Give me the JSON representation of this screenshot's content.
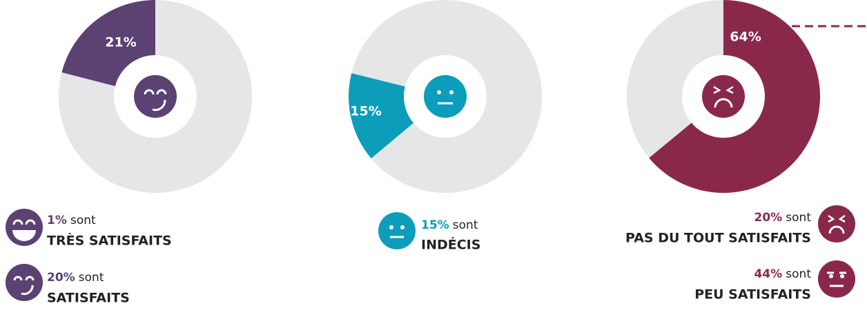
{
  "chart_data": [
    {
      "type": "pie",
      "values": [
        21,
        79
      ],
      "value_labels": [
        "21%",
        null
      ],
      "colors": [
        "#5b4272",
        "#e6e6e8"
      ]
    },
    {
      "type": "pie",
      "values": [
        15,
        85
      ],
      "value_labels": [
        "15%",
        null
      ],
      "colors": [
        "#0c9dba",
        "#e6e6e8"
      ]
    },
    {
      "type": "pie",
      "values": [
        64,
        36
      ],
      "value_labels": [
        "64%",
        null
      ],
      "colors": [
        "#8a284b",
        "#e6e6e8"
      ]
    }
  ],
  "legend": [
    {
      "percent": "1%",
      "verb": "sont",
      "label": "TRÈS SATISFAITS"
    },
    {
      "percent": "20%",
      "verb": "sont",
      "label": "SATISFAITS"
    },
    {
      "percent": "15%",
      "verb": "sont",
      "label": "INDÉCIS"
    },
    {
      "percent": "20%",
      "verb": "sont",
      "label": "PAS DU TOUT SATISFAITS"
    },
    {
      "percent": "44%",
      "verb": "sont",
      "label": "PEU SATISFAITS"
    }
  ]
}
